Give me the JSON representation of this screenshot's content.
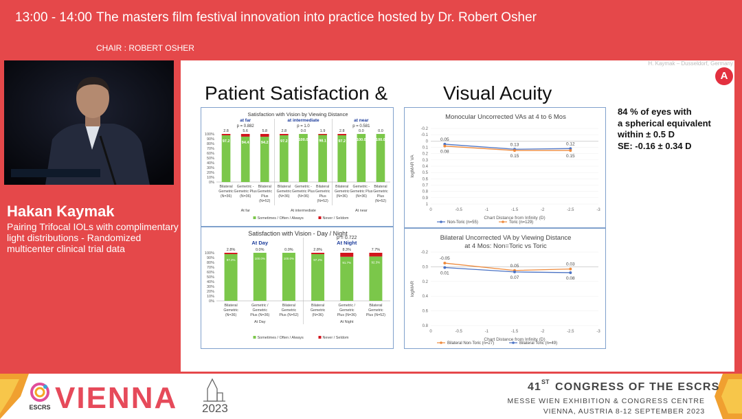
{
  "header": {
    "time": "13:00 - 14:00",
    "title": "The masters film festival innovation into practice hosted by Dr. Robert Osher",
    "chair": "CHAIR : ROBERT OSHER"
  },
  "speaker": {
    "name": "Hakan Kaymak",
    "talk_title": "Pairing Trifocal IOLs with complimentary light distributions - Randomized multicenter clinical trial data"
  },
  "slide": {
    "credit": "H. Kaymak – Dusseldorf, Germany",
    "logo": "A",
    "title_left": "Patient Satisfaction  &",
    "title_right": "Visual Acuity",
    "note_lines": [
      "84 % of eyes with",
      "a spherical equivalent",
      "within ± 0.5 D",
      "SE: -0.16 ± 0.34 D"
    ]
  },
  "colors": {
    "accent": "#e5484a",
    "bar_green": "#7bc74a",
    "bar_red": "#d2151d",
    "line_blue": "#4a72c4",
    "line_orange": "#ee8a3c"
  },
  "chart_data": [
    {
      "type": "bar",
      "title": "Satisfaction with Vision by Viewing Distance",
      "groups": [
        {
          "label": "At far",
          "head": "at far",
          "p": "p = 0.882"
        },
        {
          "label": "At intermediate",
          "head": "at intermediate",
          "p": "p = 1.0"
        },
        {
          "label": "At near",
          "head": "at near",
          "p": "p = 0.581"
        }
      ],
      "categories": [
        [
          "Bilateral",
          "Gemetric",
          "(N=36)"
        ],
        [
          "Gemetric -",
          "Gemetric Plus",
          "(N=36)"
        ],
        [
          "Bilateral",
          "Gemetric",
          "Plus",
          "(N=52)"
        ],
        [
          "Bilateral",
          "Gemetric",
          "(N=36)"
        ],
        [
          "Gemetric -",
          "Gemetric Plus",
          "(N=36)"
        ],
        [
          "Bilateral",
          "Gemetric",
          "Plus",
          "(N=52)"
        ],
        [
          "Bilateral",
          "Gemetric",
          "(N=36)"
        ],
        [
          "Gemetric -",
          "Gemetric Plus",
          "(N=36)"
        ],
        [
          "Bilateral",
          "Gemetric",
          "Plus",
          "(N=52)"
        ]
      ],
      "series": [
        {
          "name": "Sometimes / Often / Always",
          "values": [
            97.2,
            94.4,
            94.2,
            97.2,
            100.0,
            98.1,
            97.2,
            100.0,
            100.0
          ],
          "labels": [
            "97.2",
            "94.4",
            "94.2",
            "97.2",
            "100.0",
            "98.1",
            "97.2",
            "100.0",
            "100.0"
          ]
        },
        {
          "name": "Never / Seldom",
          "values": [
            2.8,
            5.6,
            5.8,
            2.8,
            0.0,
            1.9,
            2.8,
            0.0,
            0.0
          ],
          "labels": [
            "2.8",
            "5.6",
            "5.8",
            "2.8",
            "0.0",
            "1.9",
            "2.8",
            "0.0",
            "0.0"
          ]
        }
      ],
      "yticks": [
        "100%",
        "90%",
        "80%",
        "70%",
        "60%",
        "50%",
        "40%",
        "30%",
        "20%",
        "10%",
        "0%"
      ],
      "ylim": [
        0,
        100
      ],
      "legend": "bottom"
    },
    {
      "type": "bar",
      "title": "Satisfaction with Vision - Day / Night",
      "groups": [
        {
          "label": "At Day",
          "head": "At Day",
          "p": ""
        },
        {
          "label": "At Night",
          "head": "At Night",
          "p": "p = 0.722"
        }
      ],
      "categories": [
        [
          "Bilateral",
          "Gemetric",
          "(N=36)"
        ],
        [
          "Gemetric /",
          "Gemetric",
          "Plus (N=36)"
        ],
        [
          "Bilateral",
          "Gemetric",
          "Plus (N=52)"
        ],
        [
          "Bilateral",
          "Gemetric",
          "(N=36)"
        ],
        [
          "Gemetric /",
          "Gemetric",
          "Plus (N=36)"
        ],
        [
          "Bilateral",
          "Gemetric",
          "Plus (N=52)"
        ]
      ],
      "series": [
        {
          "name": "Sometimes / Often / Always",
          "values": [
            97.2,
            100.0,
            100.0,
            97.2,
            91.7,
            92.3
          ],
          "labels": [
            "97.2%",
            "100.0%",
            "100.0%",
            "97.2%",
            "91.7%",
            "92.3%"
          ]
        },
        {
          "name": "Never / Seldom",
          "values": [
            2.8,
            0.0,
            0.0,
            2.8,
            8.3,
            7.7
          ],
          "labels": [
            "2.8%",
            "0.0%",
            "0.0%",
            "2.8%",
            "8.3%",
            "7.7%"
          ]
        }
      ],
      "yticks": [
        "100%",
        "90%",
        "80%",
        "70%",
        "60%",
        "50%",
        "40%",
        "30%",
        "20%",
        "10%",
        "0%"
      ],
      "ylim": [
        0,
        100
      ],
      "legend": "bottom"
    },
    {
      "type": "line",
      "title": "Monocular Uncorrected VAs at 4 to 6 Mos",
      "xlabel": "Chart Distance from Infinity (D)",
      "ylabel": "logMAR VA",
      "xticks": [
        "0",
        "-0.5",
        "-1",
        "-1.5",
        "-2",
        "-2.5",
        "-3"
      ],
      "yticks": [
        "-0.2",
        "-0.1",
        "0",
        "0.1",
        "0.2",
        "0.3",
        "0.4",
        "0.5",
        "0.6",
        "0.7",
        "0.8",
        "0.9",
        "1"
      ],
      "xlim": [
        0,
        -3
      ],
      "ylim": [
        -0.2,
        1
      ],
      "y_reversed": true,
      "x": [
        -0.25,
        -1.5,
        -2.5
      ],
      "series": [
        {
          "name": "Non-Toric (n=55)",
          "color": "#4a72c4",
          "values": [
            0.05,
            0.13,
            0.12
          ],
          "labels": [
            "0.05",
            "0.13",
            "0.12"
          ]
        },
        {
          "name": "Toric (n=129)",
          "color": "#ee8a3c",
          "values": [
            0.08,
            0.15,
            0.15
          ],
          "labels": [
            "0.08",
            "0.15",
            "0.15"
          ]
        }
      ],
      "legend": "bottom"
    },
    {
      "type": "line",
      "title": "Bilateral Uncorrected VA by Viewing Distance",
      "subtitle": "at 4 Mos: Non=Toric vs Toric",
      "xlabel": "Chart Distance from Infinity (D)",
      "ylabel": "logMAR",
      "xticks": [
        "0",
        "-0.5",
        "-1",
        "-1.5",
        "-2",
        "-2.5",
        "-3"
      ],
      "yticks": [
        "-0.2",
        "0.0",
        "0.2",
        "0.4",
        "0.6",
        "0.8"
      ],
      "xlim": [
        0,
        -3
      ],
      "ylim": [
        -0.2,
        0.8
      ],
      "y_reversed": true,
      "x": [
        -0.25,
        -1.5,
        -2.5
      ],
      "series": [
        {
          "name": "Bilateral Non-Toric (n=27)",
          "color": "#ee8a3c",
          "values": [
            -0.05,
            0.05,
            0.03
          ],
          "labels": [
            "-0.05",
            "0.05",
            "0.03"
          ]
        },
        {
          "name": "Bilateral Toric (n=49)",
          "color": "#4a72c4",
          "values": [
            0.01,
            0.07,
            0.08
          ],
          "labels": [
            "0.01",
            "0.07",
            "0.08"
          ]
        }
      ],
      "legend": "bottom"
    }
  ],
  "footer": {
    "brand_word": "VIENNA",
    "brand_mark": "ESCRS",
    "year": "2023",
    "congress_num": "41",
    "congress_sup": "ST",
    "congress_rest": "CONGRESS  OF  THE  ESCRS",
    "venue": "MESSE WIEN EXHIBITION & CONGRESS CENTRE",
    "dates": "VIENNA, AUSTRIA 8-12 SEPTEMBER 2023"
  }
}
